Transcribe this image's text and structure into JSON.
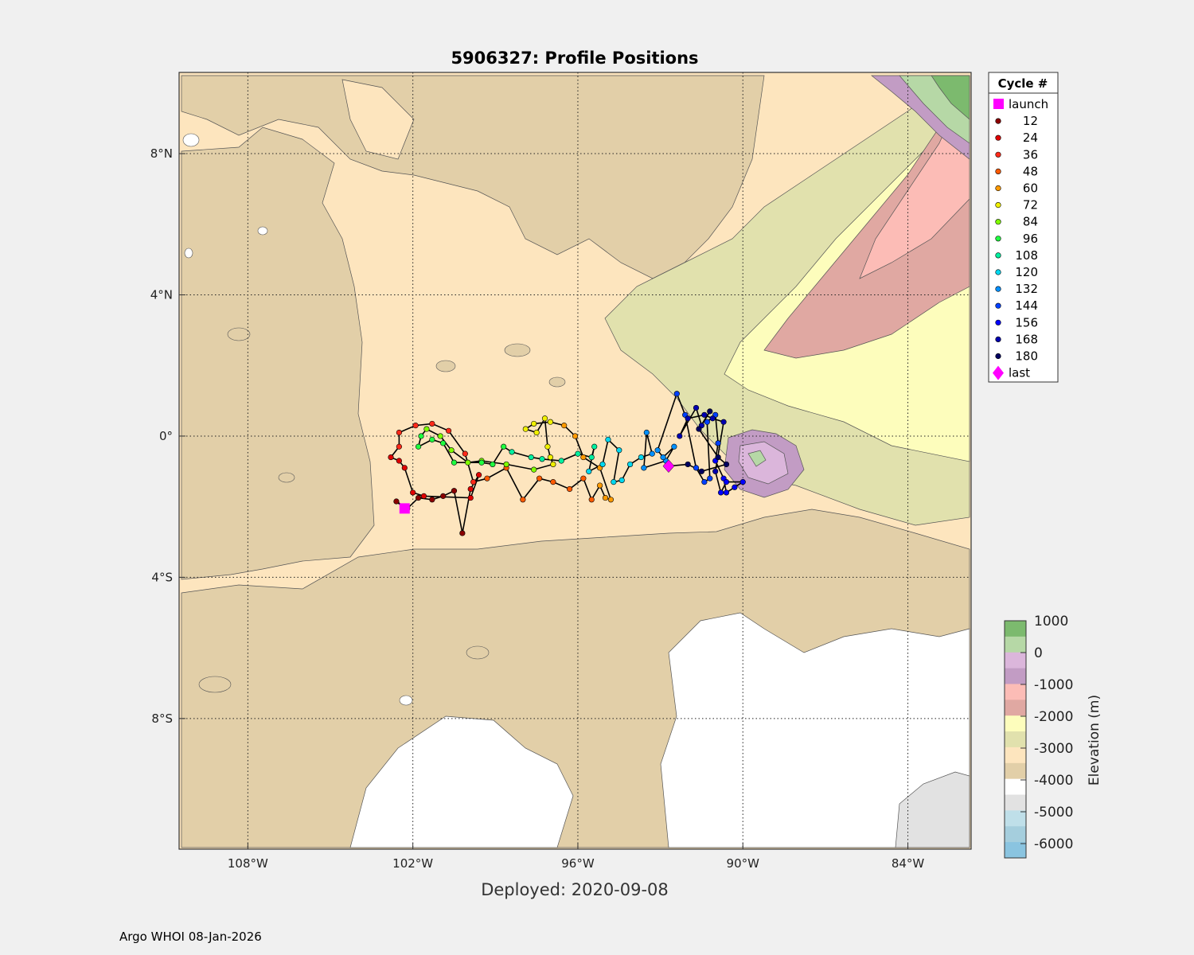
{
  "title": "5906327: Profile Positions",
  "subtitle": "Deployed: 2020-09-08",
  "footer": "Argo WHOI 08-Jan-2026",
  "map": {
    "lon_range": [
      -110.5,
      -81.7
    ],
    "lat_range": [
      -11.7,
      10.3
    ],
    "x_ticks": [
      {
        "lon": -108,
        "label": "108°W"
      },
      {
        "lon": -102,
        "label": "102°W"
      },
      {
        "lon": -96,
        "label": "96°W"
      },
      {
        "lon": -90,
        "label": "90°W"
      },
      {
        "lon": -84,
        "label": "84°W"
      }
    ],
    "y_ticks": [
      {
        "lat": 8,
        "label": "8°N"
      },
      {
        "lat": 4,
        "label": "4°N"
      },
      {
        "lat": 0,
        "label": "0°"
      },
      {
        "lat": -4,
        "label": "4°S"
      },
      {
        "lat": -8,
        "label": "8°S"
      }
    ]
  },
  "legend": {
    "title": "Cycle #",
    "items": [
      {
        "label": "launch",
        "color": "#ff00ff",
        "marker": "square"
      },
      {
        "label": "12",
        "color": "#8b0000",
        "marker": "dot"
      },
      {
        "label": "24",
        "color": "#e00000",
        "marker": "dot"
      },
      {
        "label": "36",
        "color": "#ff2a1a",
        "marker": "dot"
      },
      {
        "label": "48",
        "color": "#ff5a00",
        "marker": "dot"
      },
      {
        "label": "60",
        "color": "#ff9a00",
        "marker": "dot"
      },
      {
        "label": "72",
        "color": "#f0f000",
        "marker": "dot"
      },
      {
        "label": "84",
        "color": "#80ff00",
        "marker": "dot"
      },
      {
        "label": "96",
        "color": "#20ff40",
        "marker": "dot"
      },
      {
        "label": "108",
        "color": "#00f0a0",
        "marker": "dot"
      },
      {
        "label": "120",
        "color": "#00d8f0",
        "marker": "dot"
      },
      {
        "label": "132",
        "color": "#0090ff",
        "marker": "dot"
      },
      {
        "label": "144",
        "color": "#0040ff",
        "marker": "dot"
      },
      {
        "label": "156",
        "color": "#0000ff",
        "marker": "dot"
      },
      {
        "label": "168",
        "color": "#0000b0",
        "marker": "dot"
      },
      {
        "label": "180",
        "color": "#000060",
        "marker": "dot"
      },
      {
        "label": "last",
        "color": "#ff00ff",
        "marker": "diamond"
      }
    ]
  },
  "colorbar": {
    "label": "Elevation (m)",
    "tick_labels": [
      "1000",
      "0",
      "-1000",
      "-2000",
      "-3000",
      "-4000",
      "-5000",
      "-6000"
    ],
    "bands": [
      {
        "color": "#7cba6e"
      },
      {
        "color": "#b6d8a6"
      },
      {
        "color": "#dbb6db"
      },
      {
        "color": "#c29cc4"
      },
      {
        "color": "#fcbcb6"
      },
      {
        "color": "#e0a8a2"
      },
      {
        "color": "#fdfdbc"
      },
      {
        "color": "#e1e1ad"
      },
      {
        "color": "#fde5be"
      },
      {
        "color": "#e2cfa8"
      },
      {
        "color": "#ffffff"
      },
      {
        "color": "#e2e2e2"
      },
      {
        "color": "#bfdfe9"
      },
      {
        "color": "#a5cedd"
      },
      {
        "color": "#8ac4e0"
      }
    ]
  },
  "chart_data": {
    "type": "scatter",
    "title": "5906327: Profile Positions",
    "xlabel": "Deployed: 2020-09-08",
    "x_unit": "longitude (°)",
    "y_unit": "latitude (°)",
    "xlim": [
      -110.5,
      -81.7
    ],
    "ylim": [
      -11.7,
      10.3
    ],
    "launch": {
      "lon": -102.3,
      "lat": -2.05
    },
    "last": {
      "lon": -92.7,
      "lat": -0.85
    },
    "track": [
      [
        -102.3,
        -2.05
      ],
      [
        -102.6,
        -1.85
      ],
      [
        -102.2,
        -2.05
      ],
      [
        -101.8,
        -1.75
      ],
      [
        -101.3,
        -1.8
      ],
      [
        -100.9,
        -1.7
      ],
      [
        -100.5,
        -1.55
      ],
      [
        -100.2,
        -2.75
      ],
      [
        -99.9,
        -1.5
      ],
      [
        -99.6,
        -1.1
      ],
      [
        -99.9,
        -1.75
      ],
      [
        -101.6,
        -1.7
      ],
      [
        -102.0,
        -1.6
      ],
      [
        -102.3,
        -0.9
      ],
      [
        -102.5,
        -0.7
      ],
      [
        -102.8,
        -0.6
      ],
      [
        -102.5,
        -0.3
      ],
      [
        -102.5,
        0.1
      ],
      [
        -101.9,
        0.3
      ],
      [
        -101.3,
        0.35
      ],
      [
        -100.7,
        0.15
      ],
      [
        -100.1,
        -0.5
      ],
      [
        -99.8,
        -1.3
      ],
      [
        -99.3,
        -1.2
      ],
      [
        -98.6,
        -0.9
      ],
      [
        -98.0,
        -1.8
      ],
      [
        -97.4,
        -1.2
      ],
      [
        -96.9,
        -1.3
      ],
      [
        -96.3,
        -1.5
      ],
      [
        -95.8,
        -1.2
      ],
      [
        -95.5,
        -1.8
      ],
      [
        -95.2,
        -1.4
      ],
      [
        -95.0,
        -1.75
      ],
      [
        -94.8,
        -1.8
      ],
      [
        -95.2,
        -0.9
      ],
      [
        -95.8,
        -0.6
      ],
      [
        -96.1,
        0.0
      ],
      [
        -96.5,
        0.3
      ],
      [
        -97.0,
        0.4
      ],
      [
        -97.6,
        0.35
      ],
      [
        -97.9,
        0.2
      ],
      [
        -97.5,
        0.1
      ],
      [
        -97.2,
        0.5
      ],
      [
        -97.1,
        -0.3
      ],
      [
        -97.0,
        -0.6
      ],
      [
        -96.9,
        -0.8
      ],
      [
        -97.6,
        -0.95
      ],
      [
        -98.6,
        -0.8
      ],
      [
        -99.5,
        -0.7
      ],
      [
        -100.0,
        -0.75
      ],
      [
        -100.6,
        -0.4
      ],
      [
        -101.0,
        0.0
      ],
      [
        -101.5,
        0.2
      ],
      [
        -101.7,
        0.0
      ],
      [
        -101.8,
        -0.3
      ],
      [
        -101.3,
        -0.1
      ],
      [
        -100.9,
        -0.2
      ],
      [
        -100.5,
        -0.75
      ],
      [
        -99.5,
        -0.75
      ],
      [
        -99.1,
        -0.8
      ],
      [
        -98.7,
        -0.3
      ],
      [
        -98.4,
        -0.45
      ],
      [
        -97.7,
        -0.6
      ],
      [
        -97.3,
        -0.65
      ],
      [
        -96.6,
        -0.7
      ],
      [
        -96.0,
        -0.5
      ],
      [
        -95.5,
        -0.6
      ],
      [
        -95.4,
        -0.3
      ],
      [
        -95.6,
        -1.0
      ],
      [
        -95.1,
        -0.8
      ],
      [
        -94.9,
        -0.1
      ],
      [
        -94.5,
        -0.4
      ],
      [
        -94.7,
        -1.3
      ],
      [
        -94.4,
        -1.25
      ],
      [
        -94.1,
        -0.8
      ],
      [
        -93.7,
        -0.6
      ],
      [
        -93.3,
        -0.5
      ],
      [
        -93.5,
        0.1
      ],
      [
        -93.6,
        -0.9
      ],
      [
        -92.8,
        -0.7
      ],
      [
        -92.5,
        -0.3
      ],
      [
        -92.9,
        -0.6
      ],
      [
        -93.1,
        -0.4
      ],
      [
        -92.4,
        1.2
      ],
      [
        -92.1,
        0.6
      ],
      [
        -91.7,
        -0.9
      ],
      [
        -91.4,
        -1.3
      ],
      [
        -91.2,
        -1.2
      ],
      [
        -91.3,
        0.4
      ],
      [
        -91.0,
        0.6
      ],
      [
        -90.9,
        -0.2
      ],
      [
        -91.0,
        -0.7
      ],
      [
        -90.7,
        -1.2
      ],
      [
        -90.6,
        -1.6
      ],
      [
        -90.3,
        -1.45
      ],
      [
        -90.0,
        -1.3
      ],
      [
        -90.6,
        -1.3
      ],
      [
        -90.8,
        -1.6
      ],
      [
        -91.0,
        -1.0
      ],
      [
        -90.7,
        0.4
      ],
      [
        -91.1,
        0.5
      ],
      [
        -91.4,
        0.6
      ],
      [
        -92.0,
        0.5
      ],
      [
        -92.3,
        0.0
      ],
      [
        -91.7,
        0.8
      ],
      [
        -91.5,
        0.3
      ],
      [
        -91.2,
        0.7
      ],
      [
        -91.6,
        0.2
      ],
      [
        -90.9,
        -0.6
      ],
      [
        -90.6,
        -0.8
      ],
      [
        -91.5,
        -1.0
      ],
      [
        -92.0,
        -0.8
      ],
      [
        -92.7,
        -0.85
      ]
    ]
  }
}
